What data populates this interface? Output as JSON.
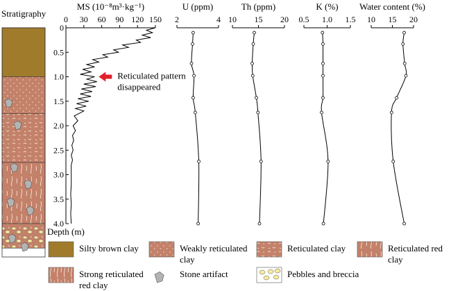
{
  "chart_data": {
    "type": "line",
    "depth_axis": {
      "label": "Depth (m)",
      "ticks": [
        "0",
        "0.5",
        "1.0",
        "1.5",
        "2.0",
        "2.5",
        "3.0",
        "3.5",
        "4.0"
      ],
      "range": [
        0,
        4.0
      ]
    },
    "stratigraphy_label": "Stratigraphy",
    "layers": [
      {
        "from": 0.0,
        "to": 1.0,
        "type": "silty"
      },
      {
        "from": 1.0,
        "to": 1.75,
        "type": "weak"
      },
      {
        "from": 1.75,
        "to": 2.75,
        "type": "reticulated"
      },
      {
        "from": 2.75,
        "to": 4.0,
        "type": "red"
      },
      {
        "from": 4.0,
        "to": 4.5,
        "type": "pebbles"
      }
    ],
    "panels": [
      {
        "label": "MS (10⁻⁸m³·kg⁻¹)",
        "ticks": [
          "0",
          "30",
          "60",
          "90",
          "120",
          "150"
        ],
        "range": [
          0,
          150
        ],
        "smooth": false,
        "markers": false,
        "depth": [
          0.0,
          0.05,
          0.1,
          0.15,
          0.2,
          0.25,
          0.3,
          0.35,
          0.4,
          0.45,
          0.5,
          0.55,
          0.6,
          0.65,
          0.7,
          0.75,
          0.8,
          0.85,
          0.9,
          0.95,
          1.0,
          1.05,
          1.1,
          1.15,
          1.2,
          1.25,
          1.3,
          1.35,
          1.4,
          1.45,
          1.5,
          1.55,
          1.6,
          1.65,
          1.7,
          1.75,
          1.8,
          1.9,
          2.0,
          2.1,
          2.2,
          2.3,
          2.4,
          2.5,
          2.6,
          2.7,
          2.8,
          3.0,
          3.2,
          3.4,
          3.6,
          3.8,
          4.0
        ],
        "values": [
          150,
          135,
          145,
          128,
          142,
          118,
          125,
          95,
          105,
          80,
          88,
          62,
          70,
          45,
          55,
          35,
          48,
          28,
          42,
          24,
          48,
          35,
          52,
          30,
          50,
          26,
          44,
          24,
          42,
          20,
          38,
          18,
          34,
          16,
          30,
          22,
          14,
          20,
          12,
          16,
          11,
          13,
          10,
          12,
          9,
          11,
          9,
          9,
          9,
          8,
          9,
          8,
          9
        ]
      },
      {
        "label": "U (ppm)",
        "ticks": [
          "2",
          "4"
        ],
        "range": [
          2,
          4
        ],
        "smooth": true,
        "markers": true,
        "depth": [
          0.1,
          0.33,
          0.73,
          0.98,
          1.43,
          1.73,
          2.73,
          4.0
        ],
        "values": [
          2.78,
          2.75,
          2.7,
          2.82,
          2.78,
          2.88,
          3.05,
          3.02
        ]
      },
      {
        "label": "Th (ppm)",
        "ticks": [
          "10",
          "15",
          "20"
        ],
        "range": [
          10,
          20
        ],
        "smooth": true,
        "markers": true,
        "depth": [
          0.1,
          0.33,
          0.73,
          0.98,
          1.43,
          1.73,
          2.73,
          4.0
        ],
        "values": [
          14.2,
          14.0,
          13.8,
          13.9,
          14.6,
          14.9,
          15.5,
          15.2
        ]
      },
      {
        "label": "K (%)",
        "ticks": [
          "0.5",
          "1.0",
          "1.5"
        ],
        "range": [
          0.5,
          1.5
        ],
        "smooth": true,
        "markers": true,
        "depth": [
          0.1,
          0.33,
          0.73,
          0.98,
          1.43,
          1.73,
          2.73,
          4.0
        ],
        "values": [
          0.9,
          0.91,
          0.91,
          0.91,
          0.91,
          0.88,
          1.02,
          0.92
        ]
      },
      {
        "label": "Water content (%)",
        "ticks": [
          "10",
          "15",
          "20"
        ],
        "range": [
          10,
          20
        ],
        "smooth": true,
        "markers": true,
        "depth": [
          0.1,
          0.33,
          0.73,
          0.98,
          1.43,
          1.73,
          2.73,
          4.0
        ],
        "values": [
          17.8,
          17.5,
          17.9,
          18.2,
          16.0,
          14.8,
          15.2,
          17.8
        ]
      }
    ],
    "annotation": {
      "lines": [
        "Reticulated pattern",
        "disappeared"
      ],
      "depth": 1.0,
      "value": 48
    },
    "legend": [
      {
        "type": "silty",
        "lines": [
          "Silty brown clay"
        ]
      },
      {
        "type": "weak",
        "lines": [
          "Weakly reticulated",
          "clay"
        ]
      },
      {
        "type": "reticulated",
        "lines": [
          "Reticulated clay"
        ]
      },
      {
        "type": "red",
        "lines": [
          "Reticulated red",
          "clay"
        ]
      },
      {
        "type": "strong",
        "lines": [
          "Strong reticulated",
          "red clay"
        ]
      },
      {
        "type": "stone",
        "lines": [
          "Stone artifact"
        ]
      },
      {
        "type": "pebbles",
        "lines": [
          "Pebbles and breccia"
        ]
      }
    ],
    "colors": {
      "silty": "#a07b2c",
      "clay": "#c4816a",
      "reticulation": "#efd9c8",
      "stone": "#b3b3b3",
      "pebble": "#f6eca0",
      "arrow": "#e0202a"
    }
  }
}
